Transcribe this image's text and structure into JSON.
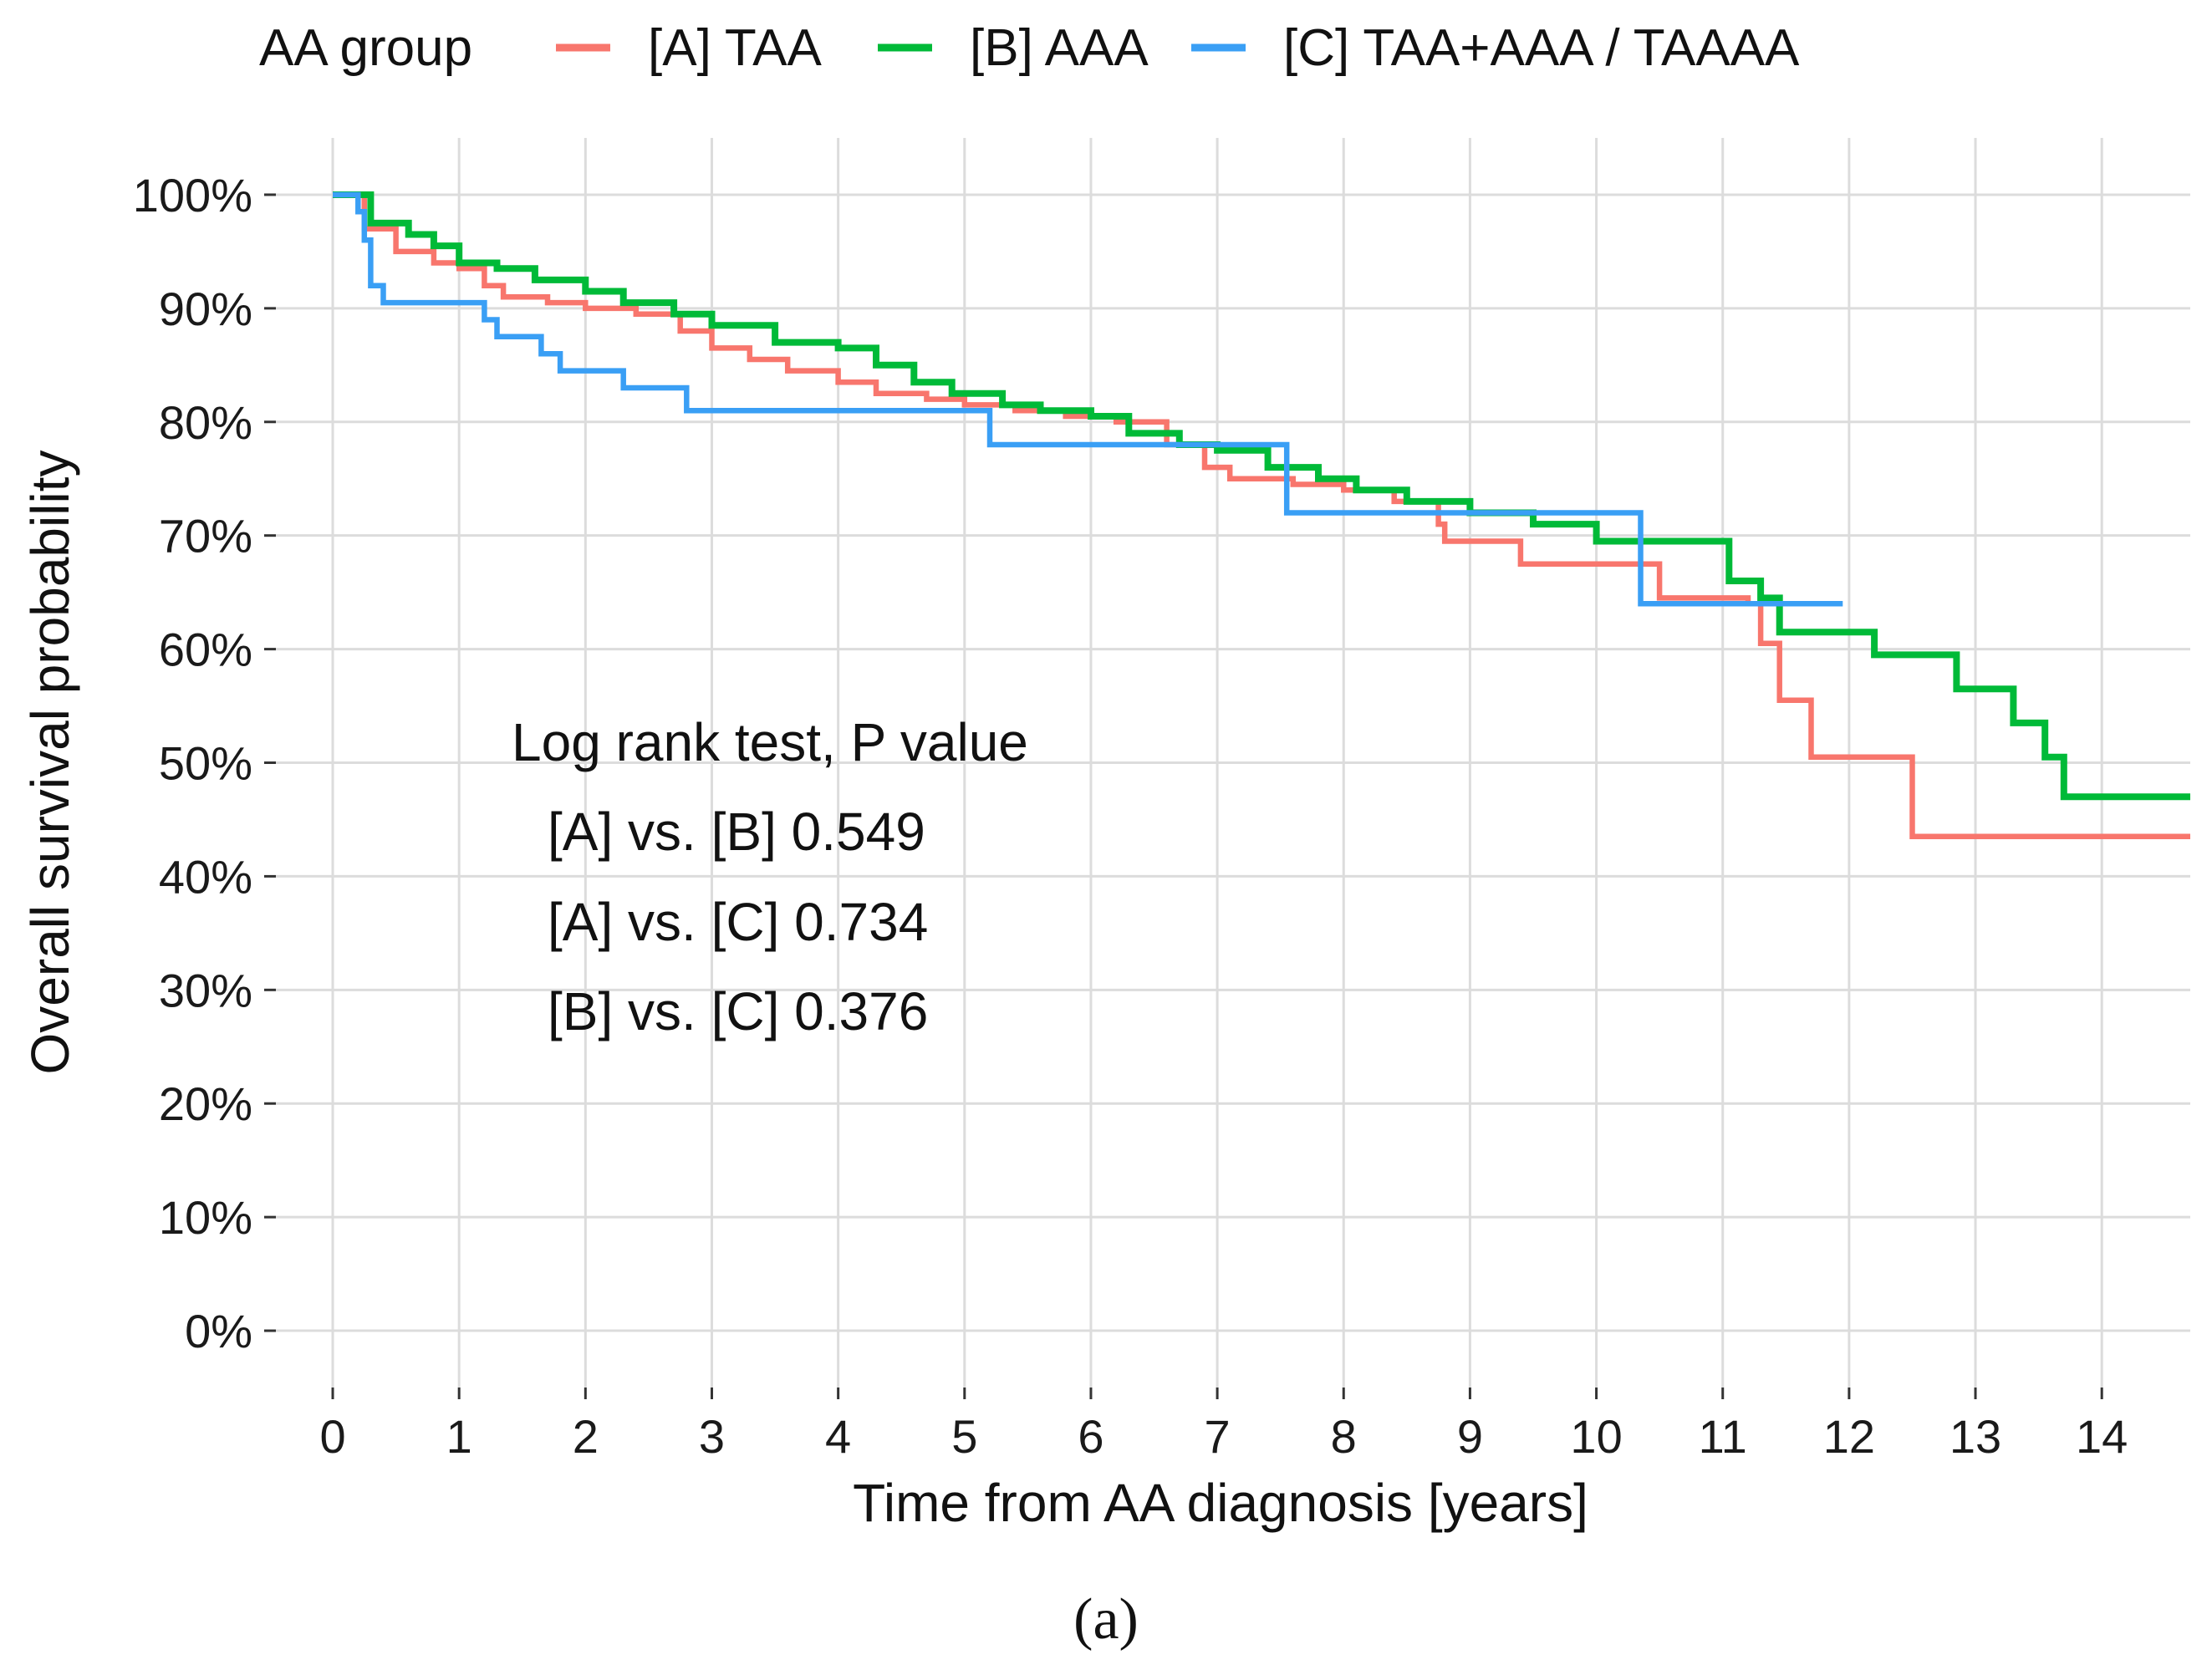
{
  "chart_data": {
    "type": "line",
    "subtype": "kaplan-meier-step",
    "xlabel": "Time from AA diagnosis [years]",
    "ylabel": "Overall survival probability",
    "xlim": [
      -0.45,
      14.7
    ],
    "ylim": [
      -5,
      105
    ],
    "x_ticks": [
      0,
      1,
      2,
      3,
      4,
      5,
      6,
      7,
      8,
      9,
      10,
      11,
      12,
      13,
      14
    ],
    "x_tick_labels": [
      "0",
      "1",
      "2",
      "3",
      "4",
      "5",
      "6",
      "7",
      "8",
      "9",
      "10",
      "11",
      "12",
      "13",
      "14"
    ],
    "y_ticks": [
      0,
      10,
      20,
      30,
      40,
      50,
      60,
      70,
      80,
      90,
      100
    ],
    "y_tick_labels": [
      "0%",
      "10%",
      "20%",
      "30%",
      "40%",
      "50%",
      "60%",
      "70%",
      "80%",
      "90%",
      "100%"
    ],
    "grid": true,
    "legend": {
      "title": "AA group",
      "placement": "top",
      "entries": [
        "[A]  TAA",
        "[B] AAA",
        "[C] TAA+AAA / TAAAA"
      ]
    },
    "series": [
      {
        "name": "[A]  TAA",
        "color": "#f8766d",
        "x": [
          0,
          0.25,
          0.5,
          0.8,
          1.0,
          1.2,
          1.35,
          1.7,
          2.0,
          2.4,
          2.75,
          3.0,
          3.3,
          3.6,
          4.0,
          4.3,
          4.7,
          5.0,
          5.4,
          5.8,
          6.2,
          6.6,
          6.9,
          7.1,
          7.6,
          8.0,
          8.4,
          8.75,
          8.8,
          9.4,
          10.5,
          11.2,
          11.3,
          11.45,
          11.7,
          12.5,
          14.7
        ],
        "values": [
          100,
          97,
          95,
          94,
          93.5,
          92,
          91,
          90.5,
          90,
          89.5,
          88,
          86.5,
          85.5,
          84.5,
          83.5,
          82.5,
          82,
          81.5,
          81,
          80.5,
          80,
          78,
          76,
          75,
          74.5,
          74,
          73,
          71,
          69.5,
          67.5,
          64.5,
          64,
          60.5,
          55.5,
          50.5,
          43.5,
          43.5
        ]
      },
      {
        "name": "[B] AAA",
        "color": "#00ba38",
        "x": [
          0,
          0.3,
          0.6,
          0.8,
          1.0,
          1.3,
          1.6,
          2.0,
          2.3,
          2.7,
          3.0,
          3.5,
          4.0,
          4.3,
          4.6,
          4.9,
          5.3,
          5.6,
          6.0,
          6.3,
          6.7,
          7.0,
          7.4,
          7.8,
          8.1,
          8.5,
          9.0,
          9.5,
          10.0,
          11.0,
          11.05,
          11.3,
          11.45,
          12.2,
          12.85,
          13.3,
          13.55,
          13.7,
          14.7
        ],
        "values": [
          100,
          97.5,
          96.5,
          95.5,
          94,
          93.5,
          92.5,
          91.5,
          90.5,
          89.5,
          88.5,
          87,
          86.5,
          85,
          83.5,
          82.5,
          81.5,
          81,
          80.5,
          79,
          78,
          77.5,
          76,
          75,
          74,
          73,
          72,
          71,
          69.5,
          69.5,
          66,
          64.5,
          61.5,
          59.5,
          56.5,
          53.5,
          50.5,
          47,
          47
        ]
      },
      {
        "name": "[C] TAA+AAA / TAAAA",
        "color": "#3a9ff5",
        "x": [
          0,
          0.2,
          0.25,
          0.3,
          0.4,
          1.05,
          1.2,
          1.3,
          1.65,
          1.8,
          2.3,
          2.8,
          5.2,
          7.55,
          10.35,
          11.95
        ],
        "values": [
          100,
          98.5,
          96,
          92,
          90.5,
          90.5,
          89,
          87.5,
          86,
          84.5,
          83,
          81,
          78,
          72,
          64,
          64
        ]
      }
    ],
    "annotations": [
      "Log rank test, P value",
      "[A] vs. [B] 0.549",
      "[A] vs. [C] 0.734",
      "[B] vs. [C] 0.376"
    ],
    "caption": "(a)"
  }
}
